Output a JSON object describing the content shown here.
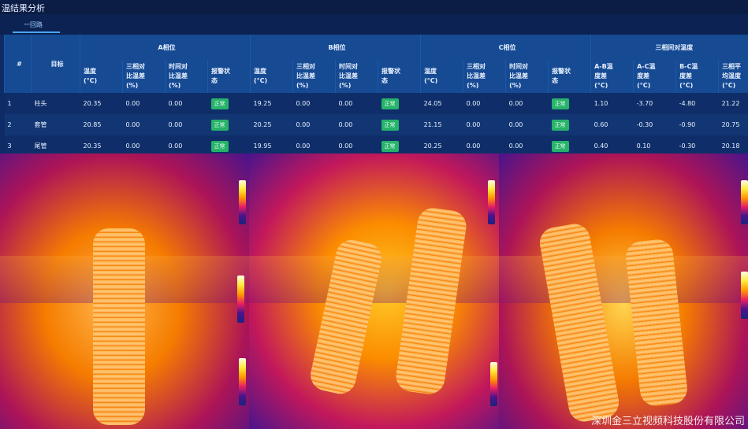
{
  "header": {
    "title": "温结果分析"
  },
  "tabs": [
    {
      "label": "一回路",
      "active": true
    }
  ],
  "table": {
    "group_headers": {
      "hash": "#",
      "target": "目标",
      "a": "A相位",
      "b": "B相位",
      "c": "C相位",
      "three": "三相间对温度"
    },
    "sub_headers": {
      "temp": "温度\n(°C)",
      "three_phase_diff": "三相对\n比温差\n(%)",
      "time_diff": "时间对\n比温差\n(%)",
      "alarm": "报警状\n态",
      "ab": "A-B温\n度差\n(°C)",
      "ac": "A-C温\n度差\n(°C)",
      "bc": "B-C温\n度差\n(°C)",
      "avg": "三相平\n均温度\n(°C)"
    },
    "rows": [
      {
        "idx": "1",
        "target": "柱头",
        "a_temp": "20.35",
        "a_3p": "0.00",
        "a_time": "0.00",
        "a_alarm": "正常",
        "b_temp": "19.25",
        "b_3p": "0.00",
        "b_time": "0.00",
        "b_alarm": "正常",
        "c_temp": "24.05",
        "c_3p": "0.00",
        "c_time": "0.00",
        "c_alarm": "正常",
        "ab": "1.10",
        "ac": "-3.70",
        "bc": "-4.80",
        "avg": "21.22"
      },
      {
        "idx": "2",
        "target": "套管",
        "a_temp": "20.85",
        "a_3p": "0.00",
        "a_time": "0.00",
        "a_alarm": "正常",
        "b_temp": "20.25",
        "b_3p": "0.00",
        "b_time": "0.00",
        "b_alarm": "正常",
        "c_temp": "21.15",
        "c_3p": "0.00",
        "c_time": "0.00",
        "c_alarm": "正常",
        "ab": "0.60",
        "ac": "-0.30",
        "bc": "-0.90",
        "avg": "20.75"
      },
      {
        "idx": "3",
        "target": "尾管",
        "a_temp": "20.35",
        "a_3p": "0.00",
        "a_time": "0.00",
        "a_alarm": "正常",
        "b_temp": "19.95",
        "b_3p": "0.00",
        "b_time": "0.00",
        "b_alarm": "正常",
        "c_temp": "20.25",
        "c_3p": "0.00",
        "c_time": "0.00",
        "c_alarm": "正常",
        "ab": "0.40",
        "ac": "0.10",
        "bc": "-0.30",
        "avg": "20.18"
      }
    ]
  },
  "colors": {
    "badge_normal": "#27b36a",
    "header_bg": "#164a93"
  },
  "watermark": {
    "text": "深圳金三立视频科技股份有限公司"
  }
}
